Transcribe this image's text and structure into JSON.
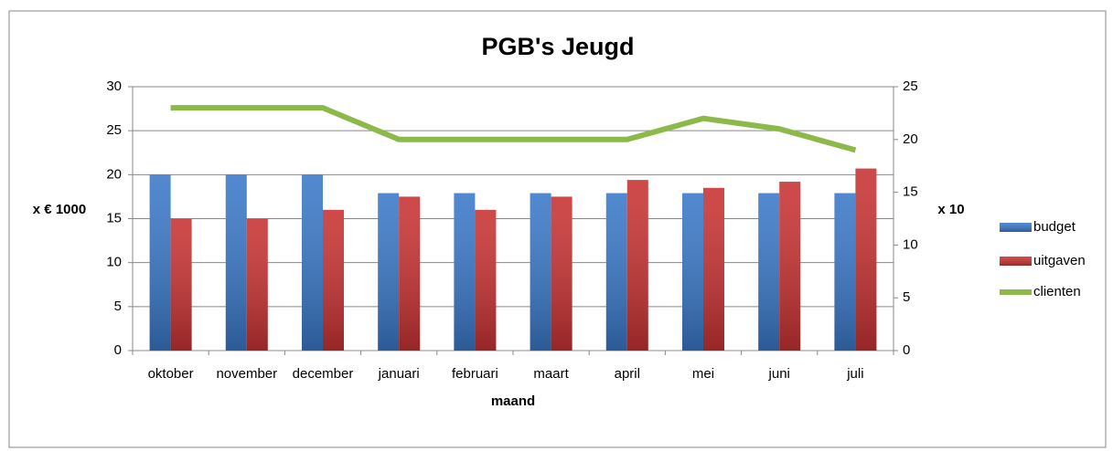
{
  "chart_data": {
    "type": "bar",
    "title": "PGB's Jeugd",
    "x_label": "maand",
    "y_label": "x € 1000",
    "y2_label": "x 10",
    "categories": [
      "oktober",
      "november",
      "december",
      "januari",
      "februari",
      "maart",
      "april",
      "mei",
      "juni",
      "juli"
    ],
    "series": [
      {
        "name": "budget",
        "type": "bar",
        "color": "#3a78c8",
        "values": [
          20,
          20,
          20,
          17.9,
          17.9,
          17.9,
          17.9,
          17.9,
          17.9,
          17.9
        ]
      },
      {
        "name": "uitgaven",
        "type": "bar",
        "color": "#c83232",
        "values": [
          15,
          15,
          16,
          17.5,
          16,
          17.5,
          19.4,
          18.5,
          19.2,
          20.7
        ]
      },
      {
        "name": "clienten",
        "type": "line",
        "axis": "y2",
        "color": "#8db84a",
        "values": [
          23,
          23,
          23,
          20,
          20,
          20,
          20,
          22,
          21,
          19
        ]
      }
    ],
    "ylim": [
      0,
      30
    ],
    "yticks": [
      0,
      5,
      10,
      15,
      20,
      25,
      30
    ],
    "y2lim": [
      0,
      25
    ],
    "y2ticks": [
      0,
      5,
      10,
      15,
      20,
      25
    ],
    "grid": true,
    "legend": "right"
  }
}
